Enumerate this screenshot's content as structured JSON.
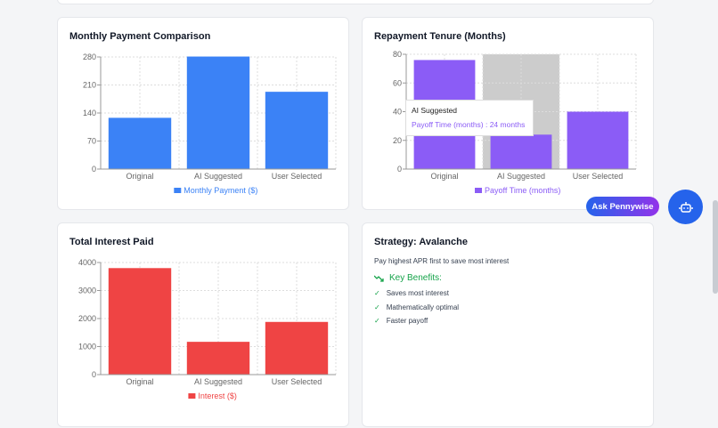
{
  "cards": {
    "monthly_title": "Monthly Payment Comparison",
    "tenure_title": "Repayment Tenure (Months)",
    "interest_title": "Total Interest Paid"
  },
  "chart_data": [
    {
      "type": "bar",
      "title": "Monthly Payment Comparison",
      "categories": [
        "Original",
        "AI Suggested",
        "User Selected"
      ],
      "series": [
        {
          "name": "Monthly Payment ($)",
          "values": [
            128,
            281,
            193
          ]
        }
      ],
      "color": "#3b82f6",
      "ylim": [
        0,
        280
      ],
      "yticks": [
        0,
        70,
        140,
        210,
        280
      ],
      "grid": true,
      "legend": "bottom"
    },
    {
      "type": "bar",
      "title": "Repayment Tenure (Months)",
      "categories": [
        "Original",
        "AI Suggested",
        "User Selected"
      ],
      "series": [
        {
          "name": "Payoff Time (months)",
          "values": [
            76,
            24,
            40
          ]
        }
      ],
      "color": "#8b5cf6",
      "ylim": [
        0,
        80
      ],
      "yticks": [
        0,
        20,
        40,
        60,
        80
      ],
      "grid": true,
      "legend": "bottom",
      "highlighted": 1
    },
    {
      "type": "bar",
      "title": "Total Interest Paid",
      "categories": [
        "Original",
        "AI Suggested",
        "User Selected"
      ],
      "series": [
        {
          "name": "Interest ($)",
          "values": [
            3800,
            1170,
            1880
          ]
        }
      ],
      "color": "#ef4444",
      "ylim": [
        0,
        4000
      ],
      "yticks": [
        0,
        1000,
        2000,
        3000,
        4000
      ],
      "grid": true,
      "legend": "bottom"
    }
  ],
  "tooltip": {
    "title": "AI Suggested",
    "line": "Payoff Time (months) : 24 months"
  },
  "strategy": {
    "title": "Strategy: Avalanche",
    "description": "Pay highest APR first to save most interest",
    "benefits_heading": "Key Benefits:",
    "check": "✓",
    "benefits": [
      "Saves most interest",
      "Mathematically optimal",
      "Faster payoff"
    ]
  },
  "assistant": {
    "ask_label": "Ask Pennywise",
    "icon": "robot-icon"
  }
}
